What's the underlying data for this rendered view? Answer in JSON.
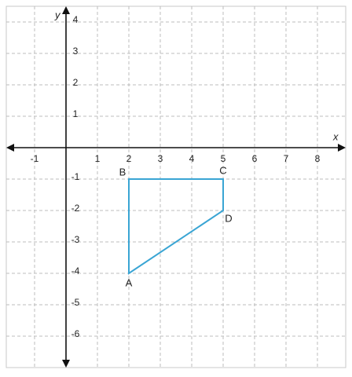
{
  "chart_data": {
    "type": "polygon",
    "x_label": "x",
    "y_label": "y",
    "xlim": [
      -1.9,
      8.9
    ],
    "ylim": [
      -7,
      4.5
    ],
    "xticks": [
      -1,
      1,
      2,
      3,
      4,
      5,
      6,
      7,
      8
    ],
    "yticks": [
      4,
      3,
      2,
      1,
      -1,
      -2,
      -3,
      -4,
      -5,
      -6
    ],
    "grid": true,
    "color": "#3aa5d4",
    "point_labels": [
      "A",
      "B",
      "C",
      "D"
    ],
    "x": [
      2,
      2,
      5,
      5
    ],
    "values": [
      -4,
      -1,
      -1,
      -2
    ]
  }
}
